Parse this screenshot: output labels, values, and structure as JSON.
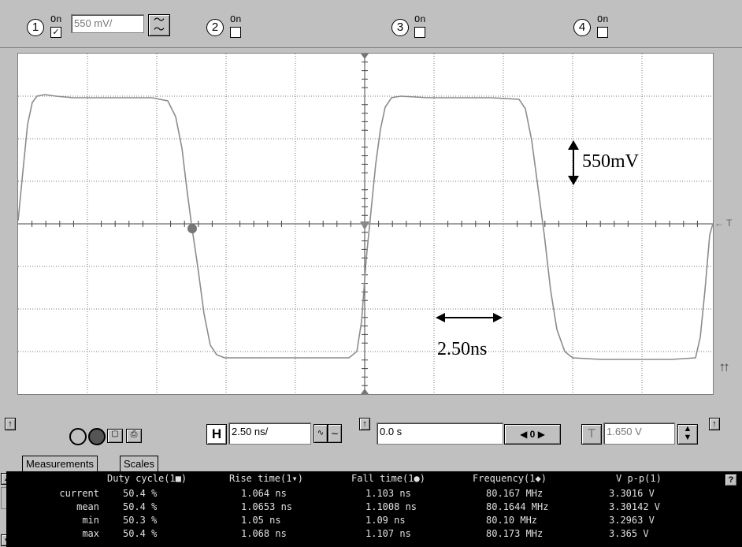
{
  "channels": [
    {
      "num": "1",
      "on": "On",
      "checked": true,
      "scale": "550 mV/"
    },
    {
      "num": "2",
      "on": "On",
      "checked": false
    },
    {
      "num": "3",
      "on": "On",
      "checked": false
    },
    {
      "num": "4",
      "on": "On",
      "checked": false
    }
  ],
  "scope": {
    "trigger_marker": "← T",
    "annotations": {
      "voltage": "550mV",
      "time": "2.50ns"
    }
  },
  "controls": {
    "h_label": "H",
    "timebase": "2.50 ns/",
    "delay": "0.0 s",
    "zero_label": "0",
    "t_label": "T",
    "trigger_level": "1.650 V"
  },
  "tabs": {
    "measurements": "Measurements",
    "scales": "Scales"
  },
  "measurements": {
    "headers": [
      "Duty cycle(1■)",
      "Rise time(1▾)",
      "Fall time(1●)",
      "Frequency(1◆)",
      "V p-p(1)"
    ],
    "rows": [
      {
        "label": "current",
        "values": [
          "50.4 %",
          "1.064 ns",
          "1.103 ns",
          "80.167 MHz",
          "3.3016 V"
        ]
      },
      {
        "label": "mean",
        "values": [
          "50.4 %",
          "1.0653 ns",
          "1.1008 ns",
          "80.1644 MHz",
          "3.30142 V"
        ]
      },
      {
        "label": "min",
        "values": [
          "50.3 %",
          "1.05 ns",
          "1.09 ns",
          "80.10 MHz",
          "3.2963 V"
        ]
      },
      {
        "label": "max",
        "values": [
          "50.4 %",
          "1.068 ns",
          "1.107 ns",
          "80.173 MHz",
          "3.365 V"
        ]
      }
    ],
    "help": "?"
  }
}
